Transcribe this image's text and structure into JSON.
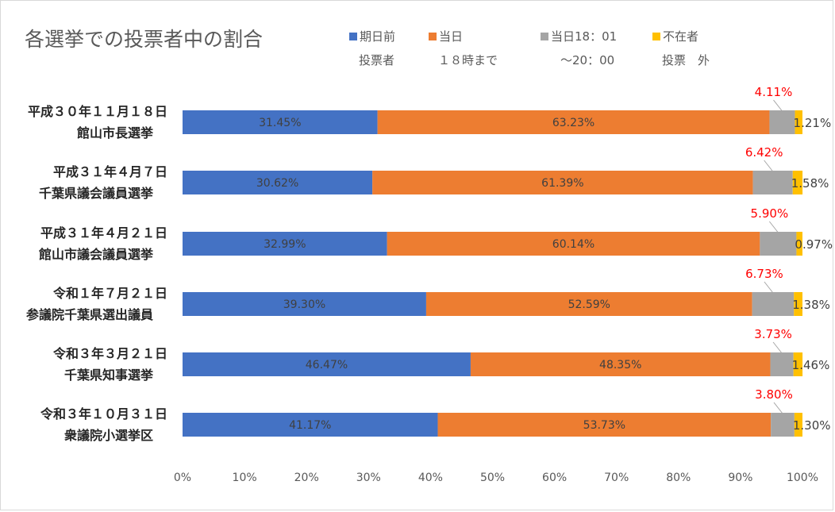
{
  "title": "各選挙での投票者中の割合",
  "chart_data": {
    "type": "bar",
    "orientation": "horizontal",
    "stacked": "percent",
    "xlim": [
      0,
      100
    ],
    "xtick_labels": [
      "0%",
      "10%",
      "20%",
      "30%",
      "40%",
      "50%",
      "60%",
      "70%",
      "80%",
      "90%",
      "100%"
    ],
    "legend_position": "top",
    "grid": false,
    "categories": [
      [
        "平成３０年１１月１８日",
        "館山市長選挙"
      ],
      [
        "平成３１年４月７日",
        "千葉県議会議員選挙"
      ],
      [
        "平成３１年４月２１日",
        "館山市議会議員選挙"
      ],
      [
        "令和１年７月２１日",
        "参議院千葉県選出議員"
      ],
      [
        "令和３年３月２１日",
        "千葉県知事選挙"
      ],
      [
        "令和３年１０月３１日",
        "衆議院小選挙区"
      ]
    ],
    "series": [
      {
        "name_lines": [
          "期日前",
          "投票者"
        ],
        "color": "#4472c4",
        "values": [
          31.45,
          30.62,
          32.99,
          39.3,
          46.47,
          41.17
        ],
        "labels": [
          "31.45%",
          "30.62%",
          "32.99%",
          "39.30%",
          "46.47%",
          "41.17%"
        ]
      },
      {
        "name_lines": [
          "当日",
          "１８時まで"
        ],
        "color": "#ed7d31",
        "values": [
          63.23,
          61.39,
          60.14,
          52.59,
          48.35,
          53.73
        ],
        "labels": [
          "63.23%",
          "61.39%",
          "60.14%",
          "52.59%",
          "48.35%",
          "53.73%"
        ]
      },
      {
        "name_lines": [
          "当日18：01",
          "～20：00"
        ],
        "color": "#a5a5a5",
        "values": [
          4.11,
          6.42,
          5.9,
          6.73,
          3.73,
          3.8
        ],
        "labels": [
          "4.11%",
          "6.42%",
          "5.90%",
          "6.73%",
          "3.73%",
          "3.80%"
        ]
      },
      {
        "name_lines": [
          "不在者",
          "投票　外"
        ],
        "color": "#ffc000",
        "values": [
          1.21,
          1.58,
          0.97,
          1.38,
          1.46,
          1.3
        ],
        "labels": [
          "1.21%",
          "1.58%",
          "0.97%",
          "1.38%",
          "1.46%",
          "1.30%"
        ]
      }
    ],
    "colors": {
      "data_label_inside": "#404040",
      "data_label_callout": "#ff0000",
      "leader_line": "#a6a6a6",
      "axis_text": "#595959",
      "category_text": "#262626"
    }
  }
}
